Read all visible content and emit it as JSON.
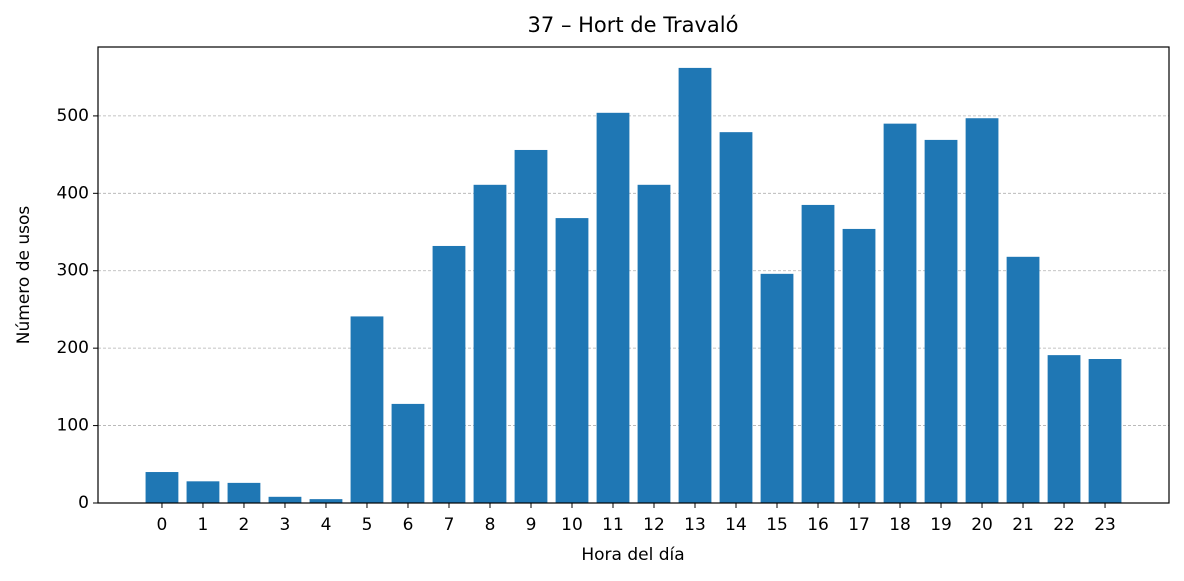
{
  "chart_data": {
    "type": "bar",
    "title": "37 – Hort de Travaló",
    "x_label": "Hora del día",
    "y_label": "Número de usos",
    "categories": [
      "0",
      "1",
      "2",
      "3",
      "4",
      "5",
      "6",
      "7",
      "8",
      "9",
      "10",
      "11",
      "12",
      "13",
      "14",
      "15",
      "16",
      "17",
      "18",
      "19",
      "20",
      "21",
      "22",
      "23"
    ],
    "values": [
      40,
      28,
      26,
      8,
      5,
      241,
      128,
      332,
      411,
      456,
      368,
      504,
      411,
      562,
      479,
      296,
      385,
      354,
      490,
      469,
      497,
      318,
      191,
      186
    ],
    "color": "#1f77b4",
    "ylim": [
      0,
      589
    ],
    "yticks": [
      0,
      100,
      200,
      300,
      400,
      500
    ],
    "grid": true
  }
}
